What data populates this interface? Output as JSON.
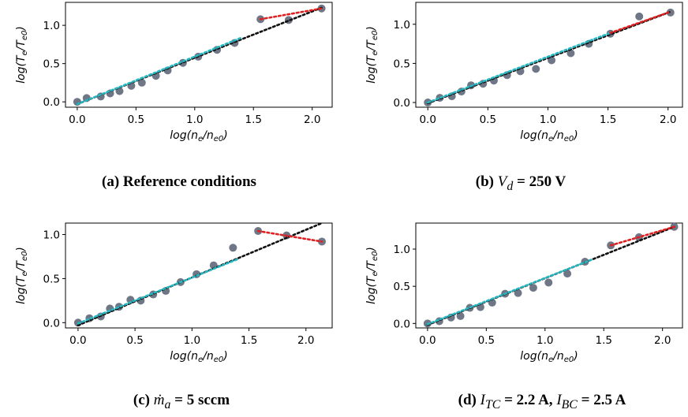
{
  "chart_data": [
    {
      "type": "scatter",
      "panel": "a",
      "caption_tag": "(a)",
      "caption_text": "Reference conditions",
      "xlabel": "log(n_e/n_e0)",
      "ylabel": "log(T_e/T_e0)",
      "xlim": [
        -0.1,
        2.17
      ],
      "ylim": [
        -0.07,
        1.3
      ],
      "xticks": [
        "0.0",
        "0.5",
        "1.0",
        "1.5",
        "2.0"
      ],
      "yticks": [
        "0.0",
        "0.5",
        "1.0"
      ],
      "grid": false,
      "points": {
        "x": [
          0.0,
          0.08,
          0.2,
          0.28,
          0.36,
          0.46,
          0.55,
          0.67,
          0.77,
          0.9,
          1.03,
          1.19,
          1.34,
          1.56,
          1.8,
          2.08
        ],
        "y": [
          0.0,
          0.05,
          0.07,
          0.11,
          0.14,
          0.21,
          0.25,
          0.34,
          0.41,
          0.51,
          0.59,
          0.68,
          0.77,
          1.08,
          1.07,
          1.22
        ]
      },
      "fits": [
        {
          "color": "#111111",
          "x": [
            0.0,
            2.08
          ],
          "y": [
            -0.03,
            1.23
          ]
        },
        {
          "color": "#23b8c2",
          "x": [
            0.0,
            1.4
          ],
          "y": [
            -0.03,
            0.84
          ]
        },
        {
          "color": "#e02020",
          "x": [
            1.56,
            2.08
          ],
          "y": [
            1.08,
            1.22
          ]
        }
      ]
    },
    {
      "type": "scatter",
      "panel": "b",
      "caption_tag": "(b)",
      "caption_sym": "V",
      "caption_sub": "d",
      "caption_text": " = 250 V",
      "xlabel": "log(n_e/n_e0)",
      "ylabel": "log(T_e/T_e0)",
      "xlim": [
        -0.1,
        2.12
      ],
      "ylim": [
        -0.06,
        1.28
      ],
      "xticks": [
        "0.0",
        "0.5",
        "1.0",
        "1.5",
        "2.0"
      ],
      "yticks": [
        "0.0",
        "0.5",
        "1.0"
      ],
      "grid": false,
      "points": {
        "x": [
          0.0,
          0.1,
          0.2,
          0.28,
          0.36,
          0.46,
          0.55,
          0.66,
          0.77,
          0.9,
          1.03,
          1.19,
          1.34,
          1.52,
          1.76,
          2.02
        ],
        "y": [
          0.0,
          0.06,
          0.08,
          0.14,
          0.22,
          0.24,
          0.28,
          0.35,
          0.4,
          0.43,
          0.54,
          0.63,
          0.75,
          0.88,
          1.1,
          1.15
        ]
      },
      "fits": [
        {
          "color": "#111111",
          "x": [
            0.0,
            2.02
          ],
          "y": [
            -0.01,
            1.16
          ]
        },
        {
          "color": "#23b8c2",
          "x": [
            0.0,
            1.52
          ],
          "y": [
            0.0,
            0.89
          ]
        },
        {
          "color": "#e02020",
          "x": [
            1.52,
            2.02
          ],
          "y": [
            0.89,
            1.16
          ]
        }
      ]
    },
    {
      "type": "scatter",
      "panel": "c",
      "caption_tag": "(c)",
      "caption_sym": "ṁ",
      "caption_sub": "a",
      "caption_text": " = 5 sccm",
      "xlabel": "log(n_e/n_e0)",
      "ylabel": "log(T_e/T_e0)",
      "xlim": [
        -0.11,
        2.23
      ],
      "ylim": [
        -0.06,
        1.13
      ],
      "xticks": [
        "0.0",
        "0.5",
        "1.0",
        "1.5",
        "2.0"
      ],
      "yticks": [
        "0.0",
        "0.5",
        "1.0"
      ],
      "grid": false,
      "points": {
        "x": [
          0.0,
          0.1,
          0.2,
          0.28,
          0.36,
          0.46,
          0.55,
          0.66,
          0.77,
          0.9,
          1.04,
          1.19,
          1.36,
          1.58,
          1.83,
          2.14
        ],
        "y": [
          0.0,
          0.05,
          0.07,
          0.16,
          0.18,
          0.26,
          0.25,
          0.32,
          0.36,
          0.46,
          0.55,
          0.65,
          0.85,
          1.04,
          0.99,
          0.92
        ]
      },
      "fits": [
        {
          "color": "#111111",
          "x": [
            0.0,
            2.14
          ],
          "y": [
            -0.03,
            1.13
          ]
        },
        {
          "color": "#23b8c2",
          "x": [
            0.0,
            1.4
          ],
          "y": [
            -0.01,
            0.72
          ]
        },
        {
          "color": "#e02020",
          "x": [
            1.58,
            2.14
          ],
          "y": [
            1.04,
            0.92
          ]
        }
      ]
    },
    {
      "type": "scatter",
      "panel": "d",
      "caption_tag": "(d)",
      "caption_sym": "I",
      "caption_sub": "TC",
      "caption_text": " = 2.2 A, ",
      "caption_sym2": "I",
      "caption_sub2": "BC",
      "caption_text2": " = 2.5 A",
      "xlabel": "log(n_e/n_e0)",
      "ylabel": "log(T_e/T_e0)",
      "xlim": [
        -0.1,
        2.17
      ],
      "ylim": [
        -0.06,
        1.35
      ],
      "xticks": [
        "0.0",
        "0.5",
        "1.0",
        "1.5",
        "2.0"
      ],
      "yticks": [
        "0.0",
        "0.5",
        "1.0"
      ],
      "grid": false,
      "points": {
        "x": [
          0.0,
          0.1,
          0.2,
          0.28,
          0.36,
          0.45,
          0.55,
          0.66,
          0.77,
          0.9,
          1.03,
          1.19,
          1.34,
          1.56,
          1.8,
          2.1
        ],
        "y": [
          0.0,
          0.03,
          0.08,
          0.1,
          0.21,
          0.22,
          0.28,
          0.4,
          0.41,
          0.48,
          0.55,
          0.67,
          0.83,
          1.05,
          1.16,
          1.3
        ]
      },
      "fits": [
        {
          "color": "#111111",
          "x": [
            0.0,
            2.1
          ],
          "y": [
            -0.02,
            1.3
          ]
        },
        {
          "color": "#23b8c2",
          "x": [
            0.0,
            1.4
          ],
          "y": [
            -0.01,
            0.86
          ]
        },
        {
          "color": "#e02020",
          "x": [
            1.56,
            2.1
          ],
          "y": [
            1.05,
            1.3
          ]
        }
      ]
    }
  ],
  "colors": {
    "marker": "#6f7786",
    "black_fit": "#111111",
    "cyan_fit": "#23b8c2",
    "red_fit": "#e02020"
  }
}
